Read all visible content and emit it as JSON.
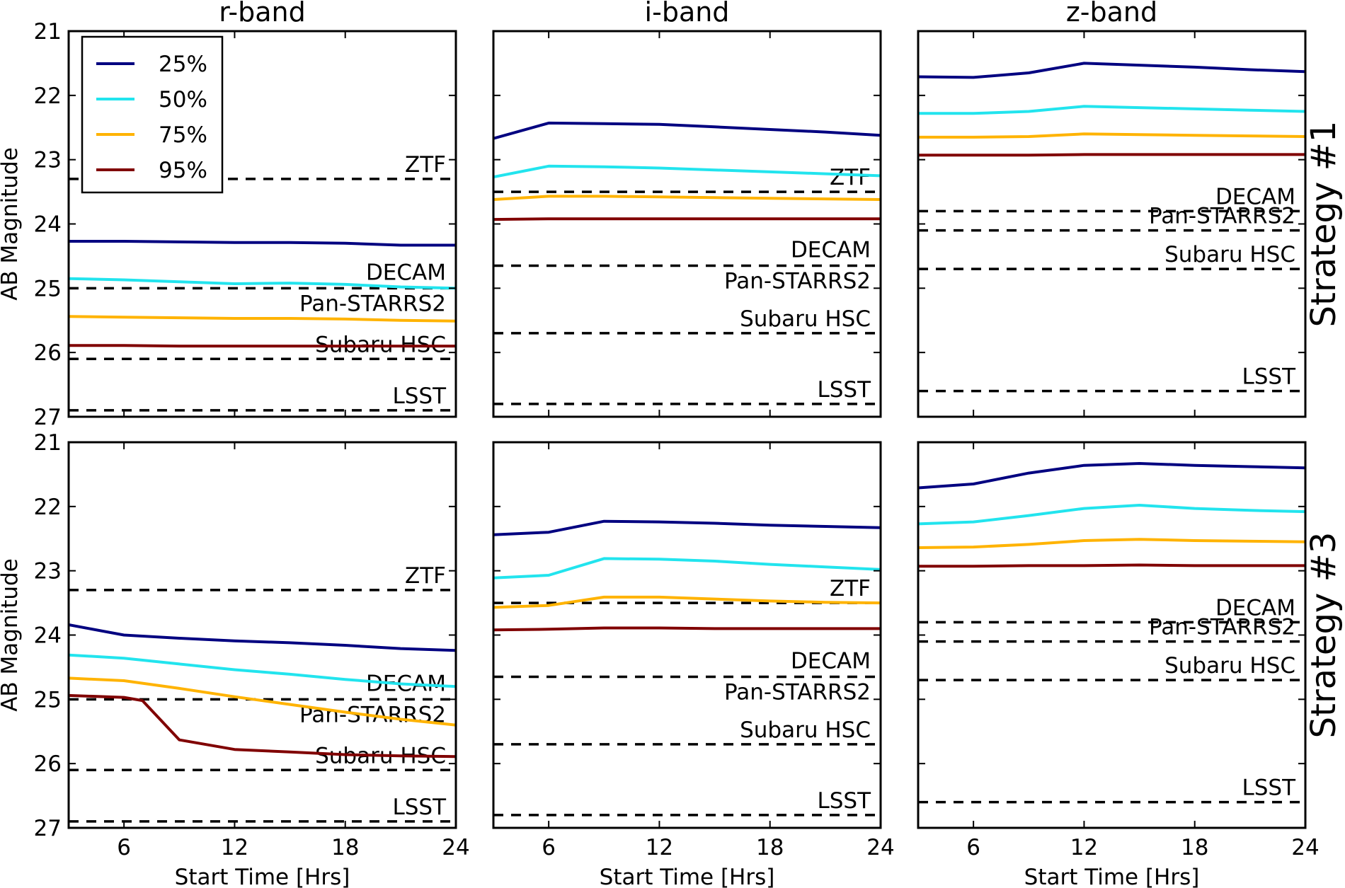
{
  "chart_data": {
    "type": "line",
    "layout": "2x3 grid",
    "xlabel": "Start Time [Hrs]",
    "ylabel": "AB Magnitude",
    "xlim": [
      3,
      24
    ],
    "ylim": [
      21,
      27
    ],
    "y_inverted": true,
    "xticks": [
      "6",
      "12",
      "18",
      "24"
    ],
    "yticks": [
      "21",
      "22",
      "23",
      "24",
      "25",
      "26",
      "27"
    ],
    "column_titles": [
      "r-band",
      "i-band",
      "z-band"
    ],
    "row_labels": [
      "Strategy #1",
      "Strategy #3"
    ],
    "legend": {
      "placement": "top-left of first panel",
      "entries": [
        {
          "label": "25%",
          "color": "#000080"
        },
        {
          "label": "50%",
          "color": "#22e4ee"
        },
        {
          "label": "75%",
          "color": "#ffb300"
        },
        {
          "label": "95%",
          "color": "#800000"
        }
      ]
    },
    "reference_style": {
      "color": "#000000",
      "dash": "dashed"
    },
    "panels": [
      {
        "row": 0,
        "col": 0,
        "references": [
          {
            "name": "ZTF",
            "value": 23.3
          },
          {
            "name": "DECAM",
            "value": 25.0
          },
          {
            "name": "Pan-STARRS2",
            "value": 25.0
          },
          {
            "name": "Subaru HSC",
            "value": 26.1
          },
          {
            "name": "LSST",
            "value": 26.9
          }
        ],
        "series": [
          {
            "name": "25%",
            "x": [
              3,
              6,
              9,
              12,
              15,
              18,
              21,
              24
            ],
            "y": [
              24.27,
              24.27,
              24.28,
              24.29,
              24.29,
              24.3,
              24.33,
              24.33
            ]
          },
          {
            "name": "50%",
            "x": [
              3,
              6,
              9,
              12,
              15,
              18,
              21,
              24
            ],
            "y": [
              24.85,
              24.87,
              24.9,
              24.93,
              24.92,
              24.94,
              24.98,
              25.0
            ]
          },
          {
            "name": "75%",
            "x": [
              3,
              6,
              9,
              12,
              15,
              18,
              21,
              24
            ],
            "y": [
              25.44,
              25.45,
              25.46,
              25.47,
              25.47,
              25.48,
              25.5,
              25.51
            ]
          },
          {
            "name": "95%",
            "x": [
              3,
              6,
              9,
              12,
              15,
              18,
              21,
              24
            ],
            "y": [
              25.89,
              25.89,
              25.9,
              25.9,
              25.9,
              25.9,
              25.9,
              25.9
            ]
          }
        ]
      },
      {
        "row": 0,
        "col": 1,
        "references": [
          {
            "name": "ZTF",
            "value": 23.5
          },
          {
            "name": "DECAM",
            "value": 24.65
          },
          {
            "name": "Pan-STARRS2",
            "value": 24.65
          },
          {
            "name": "Subaru HSC",
            "value": 25.7
          },
          {
            "name": "LSST",
            "value": 26.8
          }
        ],
        "series": [
          {
            "name": "25%",
            "x": [
              3,
              6,
              9,
              12,
              15,
              18,
              21,
              24
            ],
            "y": [
              22.67,
              22.43,
              22.44,
              22.45,
              22.49,
              22.53,
              22.57,
              22.62
            ]
          },
          {
            "name": "50%",
            "x": [
              3,
              6,
              9,
              12,
              15,
              18,
              21,
              24
            ],
            "y": [
              23.27,
              23.1,
              23.11,
              23.13,
              23.16,
              23.19,
              23.22,
              23.25
            ]
          },
          {
            "name": "75%",
            "x": [
              3,
              6,
              9,
              12,
              15,
              18,
              21,
              24
            ],
            "y": [
              23.62,
              23.57,
              23.57,
              23.58,
              23.59,
              23.6,
              23.61,
              23.62
            ]
          },
          {
            "name": "95%",
            "x": [
              3,
              6,
              9,
              12,
              15,
              18,
              21,
              24
            ],
            "y": [
              23.93,
              23.92,
              23.92,
              23.92,
              23.92,
              23.92,
              23.92,
              23.92
            ]
          }
        ]
      },
      {
        "row": 0,
        "col": 2,
        "references": [
          {
            "name": "DECAM",
            "value": 23.8
          },
          {
            "name": "Pan-STARRS2",
            "value": 24.1
          },
          {
            "name": "Subaru HSC",
            "value": 24.7
          },
          {
            "name": "LSST",
            "value": 26.6
          }
        ],
        "series": [
          {
            "name": "25%",
            "x": [
              3,
              6,
              9,
              12,
              15,
              18,
              21,
              24
            ],
            "y": [
              21.71,
              21.72,
              21.65,
              21.5,
              21.53,
              21.56,
              21.6,
              21.63
            ]
          },
          {
            "name": "50%",
            "x": [
              3,
              6,
              9,
              12,
              15,
              18,
              21,
              24
            ],
            "y": [
              22.28,
              22.28,
              22.25,
              22.17,
              22.19,
              22.21,
              22.23,
              22.25
            ]
          },
          {
            "name": "75%",
            "x": [
              3,
              6,
              9,
              12,
              15,
              18,
              21,
              24
            ],
            "y": [
              22.65,
              22.65,
              22.64,
              22.6,
              22.61,
              22.62,
              22.63,
              22.64
            ]
          },
          {
            "name": "95%",
            "x": [
              3,
              6,
              9,
              12,
              15,
              18,
              21,
              24
            ],
            "y": [
              22.93,
              22.93,
              22.93,
              22.92,
              22.92,
              22.92,
              22.92,
              22.92
            ]
          }
        ]
      },
      {
        "row": 1,
        "col": 0,
        "references": [
          {
            "name": "ZTF",
            "value": 23.3
          },
          {
            "name": "DECAM",
            "value": 25.0
          },
          {
            "name": "Pan-STARRS2",
            "value": 25.0
          },
          {
            "name": "Subaru HSC",
            "value": 26.1
          },
          {
            "name": "LSST",
            "value": 26.9
          }
        ],
        "series": [
          {
            "name": "25%",
            "x": [
              3,
              6,
              9,
              12,
              15,
              18,
              21,
              24
            ],
            "y": [
              23.84,
              24.0,
              24.05,
              24.09,
              24.12,
              24.16,
              24.21,
              24.24
            ]
          },
          {
            "name": "50%",
            "x": [
              3,
              6,
              9,
              12,
              15,
              18,
              21,
              24
            ],
            "y": [
              24.31,
              24.36,
              24.45,
              24.54,
              24.61,
              24.69,
              24.76,
              24.8
            ]
          },
          {
            "name": "75%",
            "x": [
              3,
              6,
              9,
              12,
              15,
              18,
              21,
              24
            ],
            "y": [
              24.67,
              24.71,
              24.83,
              24.96,
              25.08,
              25.2,
              25.31,
              25.4
            ]
          },
          {
            "name": "95%",
            "x": [
              3,
              6,
              7,
              9,
              12,
              15,
              18,
              21,
              24
            ],
            "y": [
              24.94,
              24.97,
              25.02,
              25.63,
              25.78,
              25.82,
              25.86,
              25.88,
              25.89
            ]
          }
        ]
      },
      {
        "row": 1,
        "col": 1,
        "references": [
          {
            "name": "ZTF",
            "value": 23.5
          },
          {
            "name": "DECAM",
            "value": 24.65
          },
          {
            "name": "Pan-STARRS2",
            "value": 24.65
          },
          {
            "name": "Subaru HSC",
            "value": 25.7
          },
          {
            "name": "LSST",
            "value": 26.8
          }
        ],
        "series": [
          {
            "name": "25%",
            "x": [
              3,
              6,
              9,
              12,
              15,
              18,
              21,
              24
            ],
            "y": [
              22.44,
              22.4,
              22.23,
              22.24,
              22.26,
              22.29,
              22.31,
              22.33
            ]
          },
          {
            "name": "50%",
            "x": [
              3,
              6,
              9,
              12,
              15,
              18,
              21,
              24
            ],
            "y": [
              23.11,
              23.07,
              22.81,
              22.82,
              22.85,
              22.9,
              22.94,
              22.98
            ]
          },
          {
            "name": "75%",
            "x": [
              3,
              6,
              9,
              12,
              15,
              18,
              21,
              24
            ],
            "y": [
              23.57,
              23.54,
              23.41,
              23.41,
              23.44,
              23.47,
              23.49,
              23.5
            ]
          },
          {
            "name": "95%",
            "x": [
              3,
              6,
              9,
              12,
              15,
              18,
              21,
              24
            ],
            "y": [
              23.92,
              23.91,
              23.89,
              23.89,
              23.9,
              23.9,
              23.9,
              23.9
            ]
          }
        ]
      },
      {
        "row": 1,
        "col": 2,
        "references": [
          {
            "name": "DECAM",
            "value": 23.8
          },
          {
            "name": "Pan-STARRS2",
            "value": 24.1
          },
          {
            "name": "Subaru HSC",
            "value": 24.7
          },
          {
            "name": "LSST",
            "value": 26.6
          }
        ],
        "series": [
          {
            "name": "25%",
            "x": [
              3,
              6,
              9,
              12,
              15,
              18,
              21,
              24
            ],
            "y": [
              21.71,
              21.65,
              21.48,
              21.36,
              21.33,
              21.36,
              21.38,
              21.4
            ]
          },
          {
            "name": "50%",
            "x": [
              3,
              6,
              9,
              12,
              15,
              18,
              21,
              24
            ],
            "y": [
              22.27,
              22.24,
              22.14,
              22.03,
              21.98,
              22.03,
              22.06,
              22.08
            ]
          },
          {
            "name": "75%",
            "x": [
              3,
              6,
              9,
              12,
              15,
              18,
              21,
              24
            ],
            "y": [
              22.64,
              22.63,
              22.59,
              22.53,
              22.51,
              22.53,
              22.54,
              22.55
            ]
          },
          {
            "name": "95%",
            "x": [
              3,
              6,
              9,
              12,
              15,
              18,
              21,
              24
            ],
            "y": [
              22.93,
              22.93,
              22.92,
              22.92,
              22.91,
              22.92,
              22.92,
              22.92
            ]
          }
        ]
      }
    ]
  }
}
